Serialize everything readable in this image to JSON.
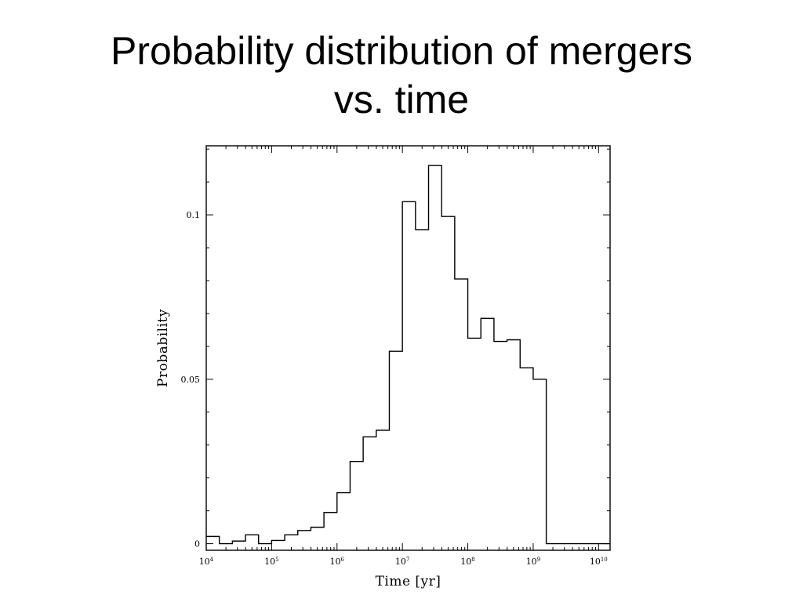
{
  "slide": {
    "title_line1": "Probability distribution of mergers",
    "title_line2": "vs. time"
  },
  "chart_data": {
    "type": "histogram",
    "xlabel": "Time [yr]",
    "ylabel": "Probability",
    "x_scale": "log",
    "xlim": [
      10000,
      15000000000
    ],
    "ylim": [
      -0.002,
      0.121
    ],
    "x_ticks": [
      {
        "value": 10000,
        "base": "10",
        "exp": "4"
      },
      {
        "value": 100000,
        "base": "10",
        "exp": "5"
      },
      {
        "value": 1000000,
        "base": "10",
        "exp": "6"
      },
      {
        "value": 10000000,
        "base": "10",
        "exp": "7"
      },
      {
        "value": 100000000,
        "base": "10",
        "exp": "8"
      },
      {
        "value": 1000000000,
        "base": "10",
        "exp": "9"
      },
      {
        "value": 10000000000,
        "base": "10",
        "exp": "10"
      }
    ],
    "y_ticks": [
      {
        "value": 0,
        "label": "0"
      },
      {
        "value": 0.05,
        "label": "0.05"
      },
      {
        "value": 0.1,
        "label": "0.1"
      }
    ],
    "grid": false,
    "bins": [
      {
        "x_start": 10000,
        "x_end": 15849,
        "probability": 0.0022
      },
      {
        "x_start": 15849,
        "x_end": 25119,
        "probability": 0.0
      },
      {
        "x_start": 25119,
        "x_end": 39811,
        "probability": 0.0008
      },
      {
        "x_start": 39811,
        "x_end": 63096,
        "probability": 0.0027
      },
      {
        "x_start": 63096,
        "x_end": 100000,
        "probability": 0.0
      },
      {
        "x_start": 100000,
        "x_end": 158489,
        "probability": 0.001
      },
      {
        "x_start": 158489,
        "x_end": 251189,
        "probability": 0.0027
      },
      {
        "x_start": 251189,
        "x_end": 398107,
        "probability": 0.004
      },
      {
        "x_start": 398107,
        "x_end": 630957,
        "probability": 0.005
      },
      {
        "x_start": 630957,
        "x_end": 1000000,
        "probability": 0.0095
      },
      {
        "x_start": 1000000,
        "x_end": 1584893,
        "probability": 0.0155
      },
      {
        "x_start": 1584893,
        "x_end": 2511886,
        "probability": 0.025
      },
      {
        "x_start": 2511886,
        "x_end": 3981072,
        "probability": 0.0325
      },
      {
        "x_start": 3981072,
        "x_end": 6309573,
        "probability": 0.0345
      },
      {
        "x_start": 6309573,
        "x_end": 10000000,
        "probability": 0.0585
      },
      {
        "x_start": 10000000,
        "x_end": 15848932,
        "probability": 0.104
      },
      {
        "x_start": 15848932,
        "x_end": 25118864,
        "probability": 0.0955
      },
      {
        "x_start": 25118864,
        "x_end": 39810717,
        "probability": 0.115
      },
      {
        "x_start": 39810717,
        "x_end": 63095734,
        "probability": 0.0995
      },
      {
        "x_start": 63095734,
        "x_end": 100000000,
        "probability": 0.0805
      },
      {
        "x_start": 100000000,
        "x_end": 158489319,
        "probability": 0.0625
      },
      {
        "x_start": 158489319,
        "x_end": 251188643,
        "probability": 0.0685
      },
      {
        "x_start": 251188643,
        "x_end": 398107171,
        "probability": 0.0615
      },
      {
        "x_start": 398107171,
        "x_end": 630957344,
        "probability": 0.062
      },
      {
        "x_start": 630957344,
        "x_end": 1000000000,
        "probability": 0.0535
      },
      {
        "x_start": 1000000000,
        "x_end": 1584893192,
        "probability": 0.05
      },
      {
        "x_start": 1584893192,
        "x_end": 15000000000,
        "probability": 0.0
      }
    ]
  }
}
